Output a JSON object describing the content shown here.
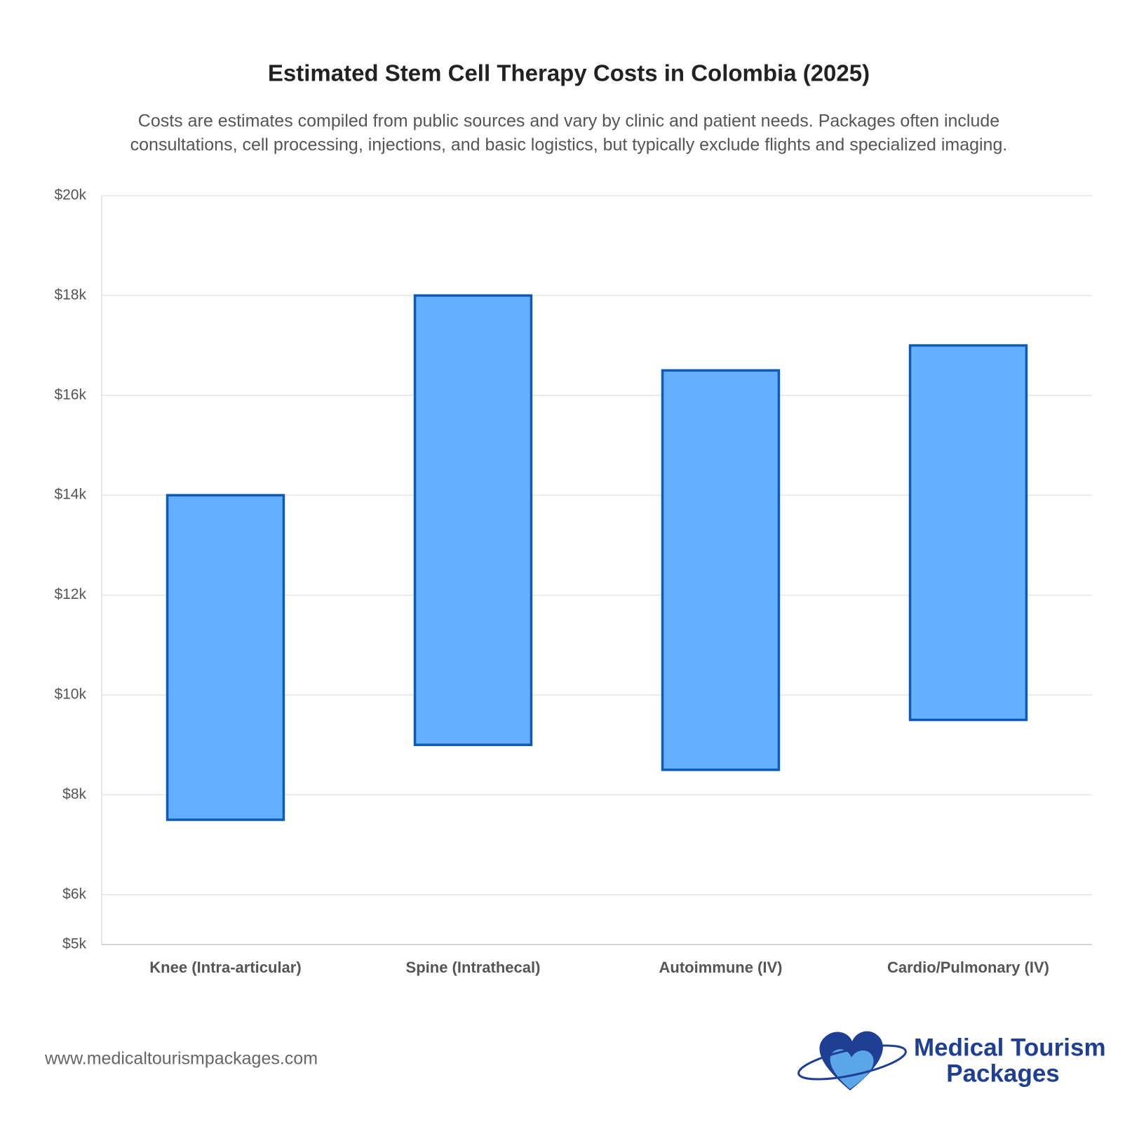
{
  "chart_data": {
    "type": "range-bar",
    "title": "Estimated Stem Cell Therapy Costs in Colombia (2025)",
    "subtitle": [
      "Costs are estimates compiled from public sources and vary by clinic and patient needs. Packages often include",
      "consultations, cell processing, injections, and basic logistics, but typically exclude flights and specialized imaging."
    ],
    "categories": [
      "Knee (Intra-articular)",
      "Spine (Intrathecal)",
      "Autoimmune (IV)",
      "Cardio/Pulmonary (IV)"
    ],
    "low": [
      7500,
      9000,
      8500,
      9500
    ],
    "high": [
      14000,
      18000,
      16500,
      17000
    ],
    "color": "#66aefe",
    "edge_color": "#0d5bb5",
    "ylim": [
      5000,
      20000
    ],
    "yticks": [
      {
        "value": 5000,
        "label": "$5k"
      },
      {
        "value": 6000,
        "label": "$6k"
      },
      {
        "value": 8000,
        "label": "$8k"
      },
      {
        "value": 10000,
        "label": "$10k"
      },
      {
        "value": 12000,
        "label": "$12k"
      },
      {
        "value": 14000,
        "label": "$14k"
      },
      {
        "value": 16000,
        "label": "$16k"
      },
      {
        "value": 18000,
        "label": "$18k"
      },
      {
        "value": 20000,
        "label": "$20k"
      }
    ],
    "grid": true
  },
  "footer": {
    "url": "www.medicaltourismpackages.com",
    "logo_line1": "Medical Tourism",
    "logo_line2": "Packages"
  }
}
